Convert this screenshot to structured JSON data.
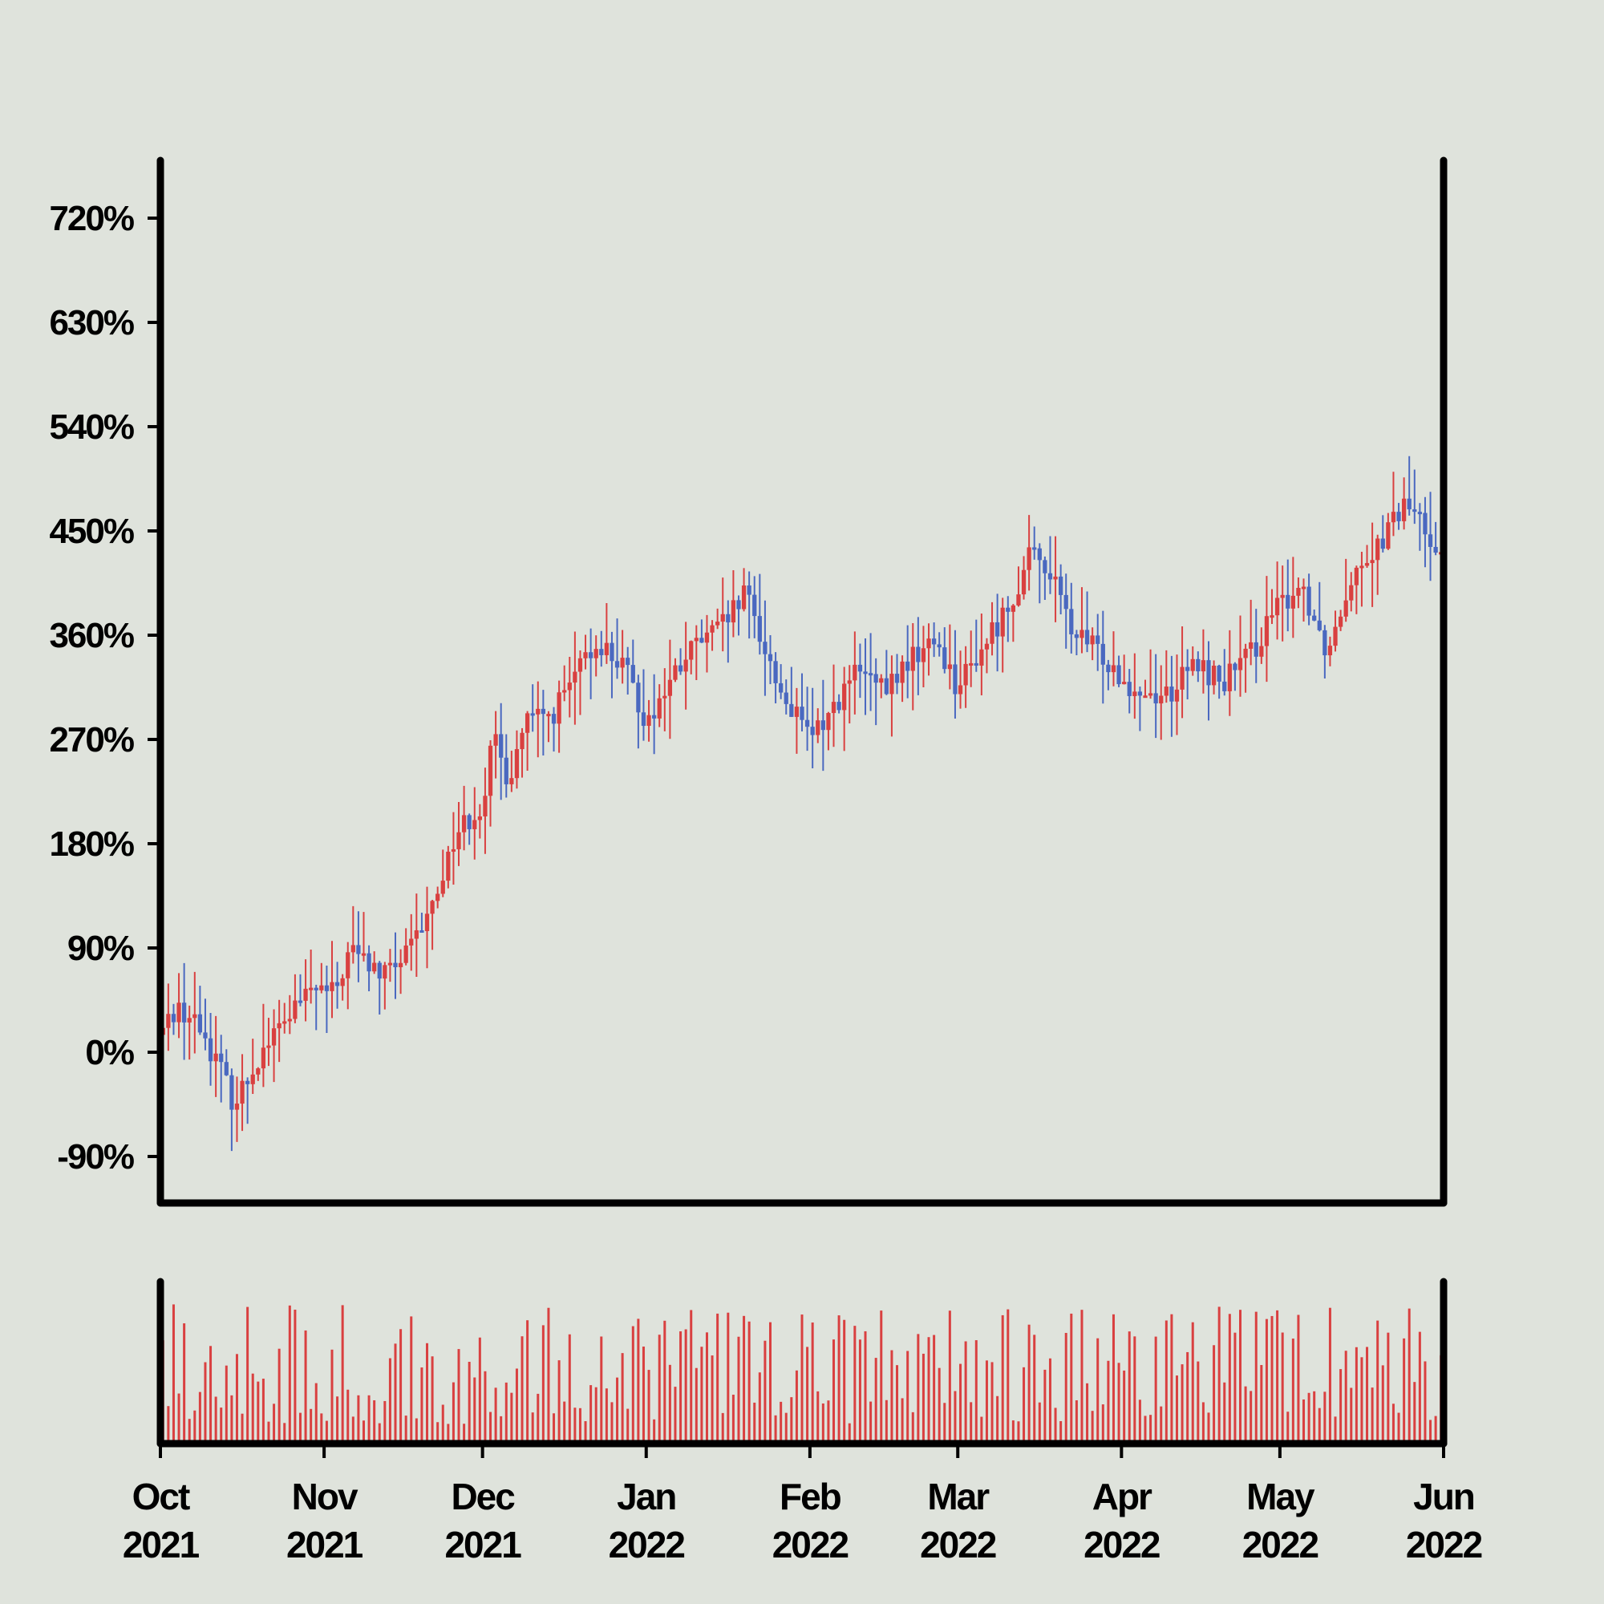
{
  "colors": {
    "background": "#dfe3dc",
    "up": "#d94040",
    "down": "#4a68c0",
    "frame": "#000000"
  },
  "chart_data": {
    "type": "candlestick-with-volume",
    "title": "",
    "xlabel": "",
    "ylabel": "",
    "y_unit": "%",
    "ylim": [
      -128,
      800
    ],
    "y_ticks": [
      -90,
      0,
      90,
      180,
      270,
      360,
      450,
      540,
      630,
      720
    ],
    "y_tick_labels": [
      "-90%",
      "0%",
      "90%",
      "180%",
      "270%",
      "360%",
      "450%",
      "540%",
      "630%",
      "720%"
    ],
    "x_range": [
      "2021-10-01",
      "2022-06-01"
    ],
    "x_ticks": [
      {
        "date": "2021-10-01",
        "month": "Oct",
        "year": "2021"
      },
      {
        "date": "2021-11-01",
        "month": "Nov",
        "year": "2021"
      },
      {
        "date": "2021-12-01",
        "month": "Dec",
        "year": "2021"
      },
      {
        "date": "2022-01-01",
        "month": "Jan",
        "year": "2022"
      },
      {
        "date": "2022-02-01",
        "month": "Feb",
        "year": "2022"
      },
      {
        "date": "2022-03-01",
        "month": "Mar",
        "year": "2022"
      },
      {
        "date": "2022-04-01",
        "month": "Apr",
        "year": "2022"
      },
      {
        "date": "2022-05-01",
        "month": "May",
        "year": "2022"
      },
      {
        "date": "2022-06-01",
        "month": "Jun",
        "year": "2022"
      }
    ],
    "grid": false,
    "legend": "none",
    "close_path": [
      [
        "2021-10-01",
        15
      ],
      [
        "2021-10-04",
        40
      ],
      [
        "2021-10-08",
        25
      ],
      [
        "2021-10-12",
        -10
      ],
      [
        "2021-10-15",
        -45
      ],
      [
        "2021-10-20",
        0
      ],
      [
        "2021-10-25",
        30
      ],
      [
        "2021-10-30",
        55
      ],
      [
        "2021-11-03",
        50
      ],
      [
        "2021-11-06",
        90
      ],
      [
        "2021-11-12",
        65
      ],
      [
        "2021-11-17",
        85
      ],
      [
        "2021-11-21",
        120
      ],
      [
        "2021-11-26",
        190
      ],
      [
        "2021-12-01",
        215
      ],
      [
        "2021-12-03",
        270
      ],
      [
        "2021-12-06",
        235
      ],
      [
        "2021-12-09",
        285
      ],
      [
        "2021-12-14",
        290
      ],
      [
        "2021-12-18",
        320
      ],
      [
        "2021-12-23",
        355
      ],
      [
        "2021-12-28",
        330
      ],
      [
        "2022-01-01",
        285
      ],
      [
        "2022-01-05",
        315
      ],
      [
        "2022-01-10",
        350
      ],
      [
        "2022-01-15",
        365
      ],
      [
        "2022-01-20",
        395
      ],
      [
        "2022-01-26",
        315
      ],
      [
        "2022-02-01",
        270
      ],
      [
        "2022-02-05",
        295
      ],
      [
        "2022-02-10",
        330
      ],
      [
        "2022-02-15",
        310
      ],
      [
        "2022-02-20",
        340
      ],
      [
        "2022-02-25",
        355
      ],
      [
        "2022-03-01",
        315
      ],
      [
        "2022-03-05",
        345
      ],
      [
        "2022-03-10",
        380
      ],
      [
        "2022-03-15",
        430
      ],
      [
        "2022-03-18",
        420
      ],
      [
        "2022-03-23",
        360
      ],
      [
        "2022-03-28",
        345
      ],
      [
        "2022-04-02",
        320
      ],
      [
        "2022-04-05",
        310
      ],
      [
        "2022-04-10",
        310
      ],
      [
        "2022-04-15",
        335
      ],
      [
        "2022-04-20",
        320
      ],
      [
        "2022-04-25",
        340
      ],
      [
        "2022-04-30",
        380
      ],
      [
        "2022-05-05",
        405
      ],
      [
        "2022-05-10",
        345
      ],
      [
        "2022-05-15",
        420
      ],
      [
        "2022-05-20",
        440
      ],
      [
        "2022-05-25",
        475
      ],
      [
        "2022-05-28",
        455
      ],
      [
        "2022-06-01",
        430
      ]
    ],
    "volume_note": "relative daily volume bars, unlabeled axis"
  }
}
